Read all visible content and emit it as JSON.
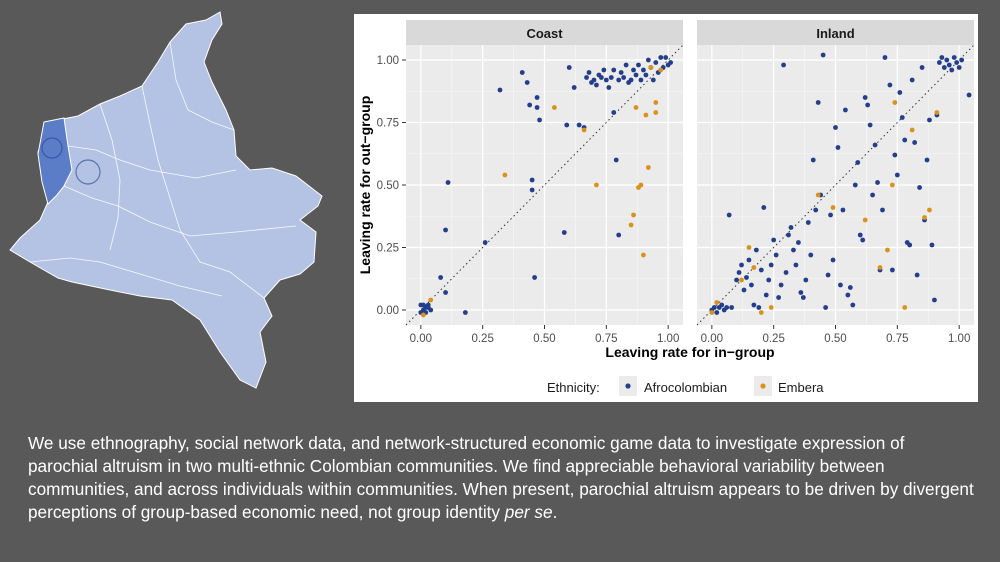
{
  "caption": {
    "main": "We use ethnography, social network data, and network-structured economic game data to investigate expression of parochial altruism in two multi-ethnic Colombian communities. We find appreciable behavioral variability between communities, and across individuals within communities. When present, parochial altruism appears to be driven by divergent perceptions of group-based economic need, not group identity",
    "emph": "per se",
    "end": "."
  },
  "colors": {
    "background": "#595959",
    "map_fill": "#b4c3e3",
    "map_highlight": "#5b7dc8",
    "panel_bg": "#ebebeb",
    "strip_bg": "#d9d9d9",
    "afro": "#233e8b",
    "embera": "#d9931c"
  },
  "chart_data": {
    "type": "scatter",
    "xlabel": "Leaving rate for in−group",
    "ylabel": "Leaving rate for out−group",
    "xlim": [
      -0.06,
      1.06
    ],
    "ylim": [
      -0.06,
      1.06
    ],
    "ticks": [
      0,
      0.25,
      0.5,
      0.75,
      1
    ],
    "tick_labels": [
      "0.00",
      "0.25",
      "0.50",
      "0.75",
      "1.00"
    ],
    "grid": true,
    "reference_line": "y = x (dotted)",
    "legend": {
      "title": "Ethnicity:",
      "position": "bottom",
      "entries": [
        "Afrocolombian",
        "Embera"
      ]
    },
    "facets": [
      {
        "name": "Coast",
        "series": [
          {
            "name": "Afrocolombian",
            "points": [
              [
                0,
                0.02
              ],
              [
                0.01,
                0
              ],
              [
                0.02,
                0.01
              ],
              [
                0.03,
                0.02
              ],
              [
                0,
                -0.01
              ],
              [
                0.02,
                -0.01
              ],
              [
                0.04,
                0
              ],
              [
                0.01,
                0.02
              ],
              [
                0.03,
                0.01
              ],
              [
                0.08,
                0.13
              ],
              [
                0.1,
                0.07
              ],
              [
                0.1,
                0.32
              ],
              [
                0.11,
                0.51
              ],
              [
                0.18,
                -0.01
              ],
              [
                0.26,
                0.27
              ],
              [
                0.32,
                0.88
              ],
              [
                0.41,
                0.95
              ],
              [
                0.43,
                0.91
              ],
              [
                0.44,
                0.82
              ],
              [
                0.45,
                0.52
              ],
              [
                0.45,
                0.48
              ],
              [
                0.46,
                0.13
              ],
              [
                0.47,
                0.85
              ],
              [
                0.47,
                0.81
              ],
              [
                0.48,
                0.76
              ],
              [
                0.58,
                0.31
              ],
              [
                0.59,
                0.74
              ],
              [
                0.6,
                0.97
              ],
              [
                0.62,
                0.89
              ],
              [
                0.64,
                0.74
              ],
              [
                0.66,
                0.73
              ],
              [
                0.67,
                0.93
              ],
              [
                0.68,
                0.95
              ],
              [
                0.69,
                0.91
              ],
              [
                0.7,
                0.92
              ],
              [
                0.71,
                0.9
              ],
              [
                0.72,
                0.94
              ],
              [
                0.73,
                0.93
              ],
              [
                0.74,
                0.96
              ],
              [
                0.75,
                0.92
              ],
              [
                0.76,
                0.89
              ],
              [
                0.77,
                0.93
              ],
              [
                0.78,
                0.79
              ],
              [
                0.78,
                0.96
              ],
              [
                0.79,
                0.6
              ],
              [
                0.8,
                0.92
              ],
              [
                0.8,
                0.3
              ],
              [
                0.81,
                0.95
              ],
              [
                0.82,
                0.93
              ],
              [
                0.83,
                0.98
              ],
              [
                0.84,
                0.91
              ],
              [
                0.85,
                0.92
              ],
              [
                0.86,
                0.96
              ],
              [
                0.87,
                0.94
              ],
              [
                0.88,
                0.98
              ],
              [
                0.89,
                0.92
              ],
              [
                0.9,
                0.96
              ],
              [
                0.91,
                0.94
              ],
              [
                0.92,
                1
              ],
              [
                0.93,
                0.97
              ],
              [
                0.94,
                0.92
              ],
              [
                0.95,
                0.99
              ],
              [
                0.96,
                0.95
              ],
              [
                0.97,
                1.01
              ],
              [
                0.98,
                0.97
              ],
              [
                0.99,
                1.01
              ],
              [
                1,
                0.98
              ],
              [
                1.01,
                0.99
              ]
            ]
          },
          {
            "name": "Embera",
            "points": [
              [
                0.01,
                -0.02
              ],
              [
                0.04,
                0.04
              ],
              [
                0.34,
                0.54
              ],
              [
                0.54,
                0.81
              ],
              [
                0.66,
                0.72
              ],
              [
                0.71,
                0.5
              ],
              [
                0.85,
                0.34
              ],
              [
                0.86,
                0.38
              ],
              [
                0.87,
                0.81
              ],
              [
                0.88,
                0.49
              ],
              [
                0.89,
                0.5
              ],
              [
                0.9,
                0.22
              ],
              [
                0.91,
                0.78
              ],
              [
                0.92,
                0.57
              ],
              [
                0.93,
                0.97
              ],
              [
                0.95,
                0.83
              ],
              [
                0.95,
                0.79
              ],
              [
                0.97,
                0.96
              ]
            ]
          }
        ]
      },
      {
        "name": "Inland",
        "series": [
          {
            "name": "Afrocolombian",
            "points": [
              [
                0,
                0
              ],
              [
                0.01,
                0.01
              ],
              [
                0.02,
                -0.01
              ],
              [
                0.03,
                0.01
              ],
              [
                0.04,
                0.02
              ],
              [
                0.05,
                0
              ],
              [
                0.06,
                0.01
              ],
              [
                0.07,
                0.38
              ],
              [
                0.08,
                0.01
              ],
              [
                0.1,
                0.12
              ],
              [
                0.11,
                0.15
              ],
              [
                0.12,
                0.18
              ],
              [
                0.13,
                0.08
              ],
              [
                0.14,
                0.13
              ],
              [
                0.15,
                0.2
              ],
              [
                0.16,
                0.1
              ],
              [
                0.17,
                0.02
              ],
              [
                0.18,
                0.24
              ],
              [
                0.19,
                0.01
              ],
              [
                0.2,
                0.16
              ],
              [
                0.21,
                0.41
              ],
              [
                0.22,
                0.06
              ],
              [
                0.23,
                0.12
              ],
              [
                0.24,
                0.18
              ],
              [
                0.25,
                0.28
              ],
              [
                0.26,
                0.22
              ],
              [
                0.27,
                0.05
              ],
              [
                0.28,
                0.1
              ],
              [
                0.29,
                0.98
              ],
              [
                0.3,
                0.15
              ],
              [
                0.31,
                0.3
              ],
              [
                0.32,
                0.33
              ],
              [
                0.33,
                0.24
              ],
              [
                0.34,
                0.18
              ],
              [
                0.35,
                0.27
              ],
              [
                0.36,
                0.07
              ],
              [
                0.37,
                0.05
              ],
              [
                0.38,
                0.12
              ],
              [
                0.39,
                0.35
              ],
              [
                0.4,
                0.22
              ],
              [
                0.41,
                0.6
              ],
              [
                0.42,
                0.4
              ],
              [
                0.43,
                0.83
              ],
              [
                0.44,
                0.46
              ],
              [
                0.45,
                1.02
              ],
              [
                0.46,
                0.01
              ],
              [
                0.47,
                0.14
              ],
              [
                0.48,
                0.38
              ],
              [
                0.49,
                0.2
              ],
              [
                0.5,
                0.73
              ],
              [
                0.51,
                0.65
              ],
              [
                0.52,
                0.1
              ],
              [
                0.53,
                0.4
              ],
              [
                0.54,
                0.8
              ],
              [
                0.55,
                0.06
              ],
              [
                0.56,
                0.09
              ],
              [
                0.57,
                0.02
              ],
              [
                0.58,
                0.5
              ],
              [
                0.59,
                0.59
              ],
              [
                0.6,
                0.3
              ],
              [
                0.61,
                0.28
              ],
              [
                0.62,
                0.85
              ],
              [
                0.63,
                0.82
              ],
              [
                0.64,
                0.74
              ],
              [
                0.65,
                0.46
              ],
              [
                0.66,
                0.66
              ],
              [
                0.67,
                0.51
              ],
              [
                0.68,
                0.16
              ],
              [
                0.69,
                0.4
              ],
              [
                0.7,
                1.01
              ],
              [
                0.72,
                0.9
              ],
              [
                0.73,
                0.16
              ],
              [
                0.74,
                0.62
              ],
              [
                0.75,
                0.54
              ],
              [
                0.76,
                0.87
              ],
              [
                0.77,
                0.77
              ],
              [
                0.78,
                0.68
              ],
              [
                0.79,
                0.27
              ],
              [
                0.8,
                0.26
              ],
              [
                0.81,
                0.92
              ],
              [
                0.82,
                0.67
              ],
              [
                0.83,
                0.14
              ],
              [
                0.84,
                0.49
              ],
              [
                0.85,
                0.97
              ],
              [
                0.86,
                0.36
              ],
              [
                0.87,
                0.6
              ],
              [
                0.88,
                0.76
              ],
              [
                0.89,
                0.26
              ],
              [
                0.9,
                0.04
              ],
              [
                0.91,
                0.78
              ],
              [
                0.92,
                0.99
              ],
              [
                0.93,
                1.01
              ],
              [
                0.94,
                0.97
              ],
              [
                0.95,
                1
              ],
              [
                0.96,
                0.98
              ],
              [
                0.97,
                0.96
              ],
              [
                0.98,
                1.01
              ],
              [
                0.99,
                0.99
              ],
              [
                1,
                0.97
              ],
              [
                1.01,
                1
              ],
              [
                1.04,
                0.86
              ]
            ]
          },
          {
            "name": "Embera",
            "points": [
              [
                0,
                -0.01
              ],
              [
                0.02,
                0.03
              ],
              [
                0.12,
                0.12
              ],
              [
                0.15,
                0.25
              ],
              [
                0.17,
                0.17
              ],
              [
                0.2,
                -0.01
              ],
              [
                0.24,
                0.01
              ],
              [
                0.43,
                0.46
              ],
              [
                0.49,
                0.41
              ],
              [
                0.62,
                0.36
              ],
              [
                0.68,
                0.17
              ],
              [
                0.71,
                0.24
              ],
              [
                0.73,
                0.5
              ],
              [
                0.74,
                0.83
              ],
              [
                0.78,
                0.01
              ],
              [
                0.81,
                0.72
              ],
              [
                0.86,
                0.37
              ],
              [
                0.88,
                0.4
              ],
              [
                0.91,
                0.79
              ]
            ]
          }
        ]
      }
    ]
  }
}
